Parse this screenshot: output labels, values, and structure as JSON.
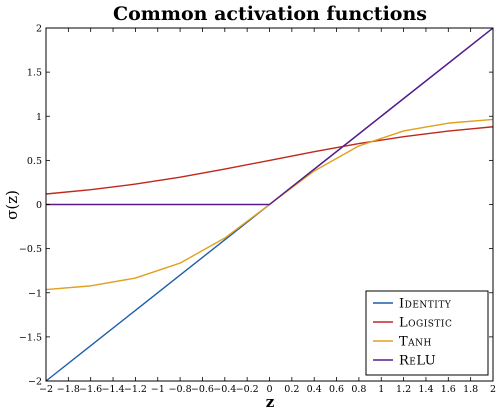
{
  "chart_data": {
    "type": "line",
    "title": "Common activation functions",
    "xlabel": "z",
    "ylabel": "σ(z)",
    "xlim": [
      -2,
      2
    ],
    "ylim": [
      -2,
      2
    ],
    "xticks": [
      -2,
      -1.8,
      -1.6,
      -1.4,
      -1.2,
      -1,
      -0.8,
      -0.6,
      -0.4,
      -0.2,
      0,
      0.2,
      0.4,
      0.6,
      0.8,
      1,
      1.2,
      1.4,
      1.6,
      1.8,
      2
    ],
    "xtick_labels": [
      "−2",
      "−1.8",
      "−1.6",
      "−1.4",
      "−1.2",
      "−1",
      "−0.8",
      "−0.6",
      "−0.4",
      "−0.2",
      "0",
      "0.2",
      "0.4",
      "0.6",
      "0.8",
      "1",
      "1.2",
      "1.4",
      "1.6",
      "1.8",
      "2"
    ],
    "yticks": [
      -2,
      -1.5,
      -1,
      -0.5,
      0,
      0.5,
      1,
      1.5,
      2
    ],
    "ytick_labels": [
      "−2",
      "−1.5",
      "−1",
      "−0.5",
      "0",
      "0.5",
      "1",
      "1.5",
      "2"
    ],
    "grid": false,
    "legend_position": "bottom-right",
    "series": [
      {
        "name": "Identity",
        "color": "#1f5fa8",
        "x": [
          -2,
          -1.6,
          -1.2,
          -0.8,
          -0.4,
          0,
          0.4,
          0.8,
          1.2,
          1.6,
          2
        ],
        "y": [
          -2,
          -1.6,
          -1.2,
          -0.8,
          -0.4,
          0,
          0.4,
          0.8,
          1.2,
          1.6,
          2
        ]
      },
      {
        "name": "Logistic",
        "color": "#c0281b",
        "x": [
          -2,
          -1.6,
          -1.2,
          -0.8,
          -0.4,
          0,
          0.4,
          0.8,
          1.2,
          1.6,
          2
        ],
        "y": [
          0.119,
          0.168,
          0.231,
          0.31,
          0.401,
          0.5,
          0.599,
          0.69,
          0.769,
          0.832,
          0.881
        ]
      },
      {
        "name": "Tanh",
        "color": "#e0a020",
        "x": [
          -2,
          -1.6,
          -1.2,
          -0.8,
          -0.4,
          0,
          0.4,
          0.8,
          1.2,
          1.6,
          2
        ],
        "y": [
          -0.964,
          -0.922,
          -0.834,
          -0.664,
          -0.38,
          0,
          0.38,
          0.664,
          0.834,
          0.922,
          0.964
        ]
      },
      {
        "name": "ReLU",
        "color": "#5b1a8c",
        "x": [
          -2,
          -1,
          0,
          0.4,
          0.8,
          1.2,
          1.6,
          2
        ],
        "y": [
          0,
          0,
          0,
          0.4,
          0.8,
          1.2,
          1.6,
          2
        ]
      }
    ]
  }
}
